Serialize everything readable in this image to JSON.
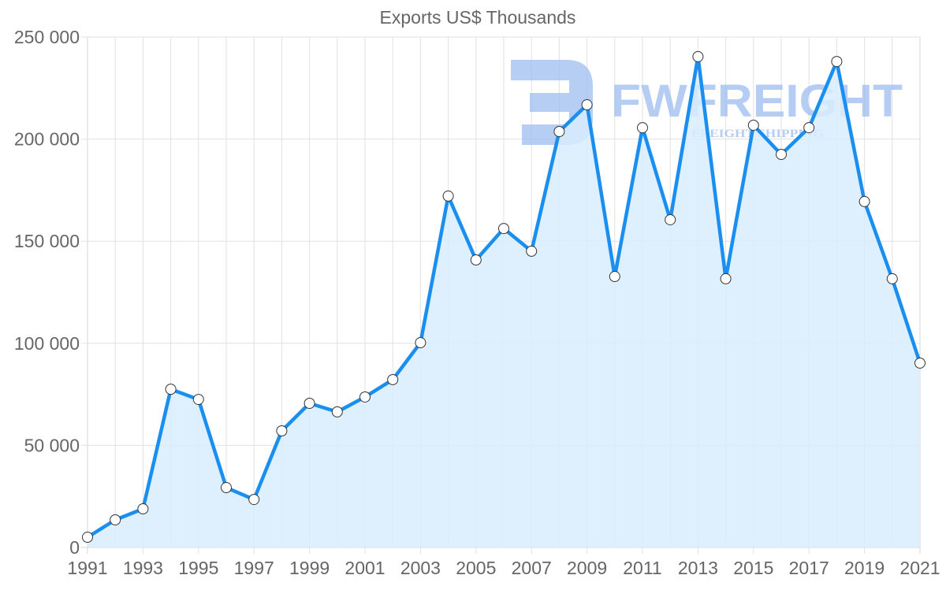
{
  "chart_data": {
    "type": "area",
    "title": "Exports US$ Thousands",
    "xlabel": "",
    "ylabel": "",
    "x": [
      1991,
      1992,
      1993,
      1994,
      1995,
      1996,
      1997,
      1998,
      1999,
      2000,
      2001,
      2002,
      2003,
      2004,
      2005,
      2006,
      2007,
      2008,
      2009,
      2010,
      2011,
      2012,
      2013,
      2014,
      2015,
      2016,
      2017,
      2018,
      2019,
      2020,
      2021
    ],
    "series": [
      {
        "name": "Exports US$ Thousands",
        "values": [
          5000,
          13500,
          18900,
          77500,
          72500,
          29300,
          23500,
          57100,
          70600,
          66400,
          73700,
          82200,
          100300,
          172100,
          140800,
          156200,
          145100,
          203700,
          216800,
          132700,
          205600,
          160500,
          240400,
          131600,
          206800,
          192500,
          205600,
          238000,
          169400,
          131600,
          90300
        ]
      }
    ],
    "xticks": [
      "1991",
      "1993",
      "1995",
      "1997",
      "1999",
      "2001",
      "2003",
      "2005",
      "2007",
      "2009",
      "2011",
      "2013",
      "2015",
      "2017",
      "2019",
      "2021"
    ],
    "yticks": [
      "0",
      "50 000",
      "100 000",
      "150 000",
      "200 000",
      "250 000"
    ],
    "ylim": [
      0,
      250000
    ],
    "xlim": [
      1991,
      2021
    ],
    "grid": true,
    "legend": "none",
    "colors": {
      "line": "#1a8ff0",
      "fill": "#d8ecfd",
      "point_fill": "#ffffff",
      "point_stroke": "#333333"
    }
  },
  "watermark": {
    "brand": "FWFREIGHT",
    "tagline": "FREIGHT SHIPPING",
    "color": "#9dbdf0"
  }
}
